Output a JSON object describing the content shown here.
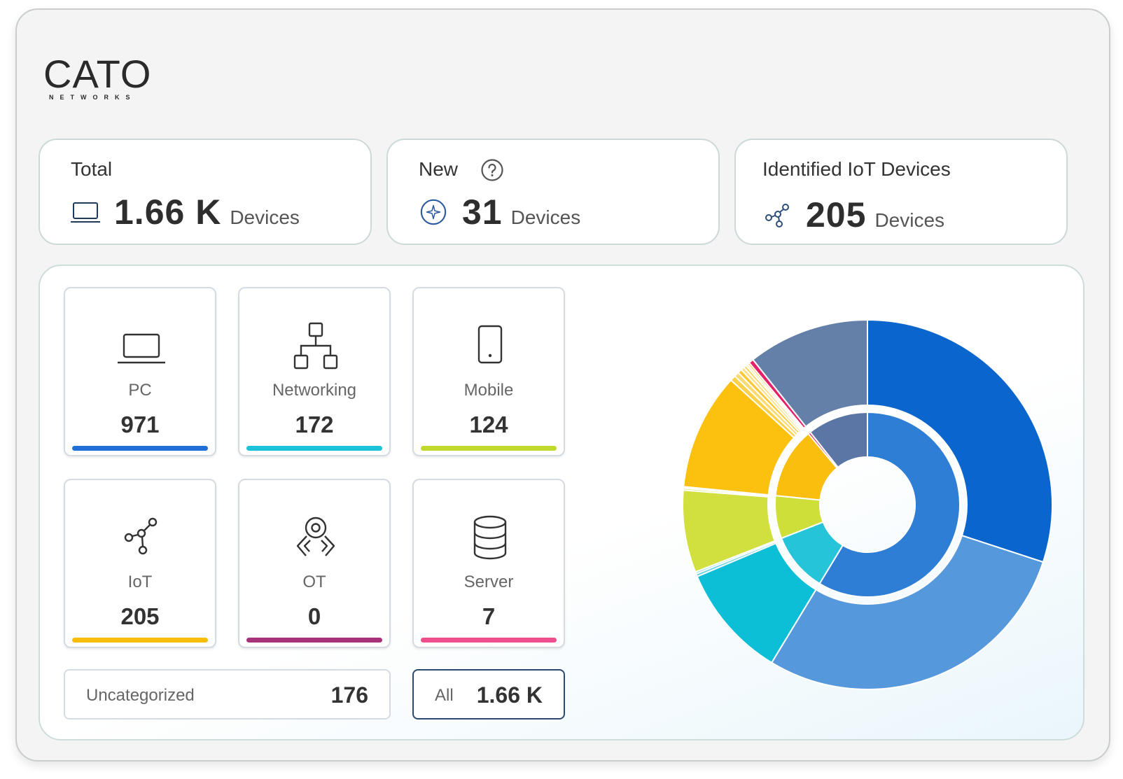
{
  "logo": {
    "main": "CATO",
    "sub": "NETWORKS"
  },
  "stats": {
    "total": {
      "title": "Total",
      "value": "1.66 K",
      "unit": "Devices",
      "icon": "laptop-icon"
    },
    "new": {
      "title": "New",
      "value": "31",
      "unit": "Devices",
      "icon": "sparkle-circle-icon",
      "help_icon": "question-circle-icon"
    },
    "iot": {
      "title": "Identified IoT Devices",
      "value": "205",
      "unit": "Devices",
      "icon": "nodes-icon"
    }
  },
  "categories": [
    {
      "label": "PC",
      "value": "971",
      "icon": "laptop-icon",
      "color": "#1f6fd6"
    },
    {
      "label": "Networking",
      "value": "172",
      "icon": "network-tree-icon",
      "color": "#1cc3d8"
    },
    {
      "label": "Mobile",
      "value": "124",
      "icon": "mobile-phone-icon",
      "color": "#c3d82d"
    },
    {
      "label": "IoT",
      "value": "205",
      "icon": "nodes-icon",
      "color": "#f8bc0b"
    },
    {
      "label": "OT",
      "value": "0",
      "icon": "robot-arm-icon",
      "color": "#a8327a"
    },
    {
      "label": "Server",
      "value": "7",
      "icon": "database-icon",
      "color": "#ee4f8c"
    }
  ],
  "uncategorized": {
    "label": "Uncategorized",
    "value": "176"
  },
  "all": {
    "label": "All",
    "value": "1.66 K",
    "border_color": "#2b4a6e"
  },
  "chart_data": {
    "type": "pie",
    "variant": "sunburst",
    "inner_ring": [
      {
        "category": "PC",
        "value": 971,
        "color": "#2f7ed6"
      },
      {
        "category": "Networking",
        "value": 172,
        "color": "#25c4d9"
      },
      {
        "category": "Mobile",
        "value": 124,
        "color": "#cedf3a"
      },
      {
        "category": "IoT",
        "value": 205,
        "color": "#f9be0e"
      },
      {
        "category": "Server",
        "value": 7,
        "color": "#e9326f"
      },
      {
        "category": "Uncategorized",
        "value": 176,
        "color": "#5b76a4"
      }
    ],
    "outer_ring": [
      {
        "category": "PC",
        "value": 497,
        "color": "#0a65cc"
      },
      {
        "category": "PC",
        "value": 474,
        "color": "#5598dc"
      },
      {
        "category": "Networking",
        "value": 165,
        "color": "#0dbfd6"
      },
      {
        "category": "Networking",
        "value": 4,
        "color": "#5fd3e3"
      },
      {
        "category": "Networking",
        "value": 3,
        "color": "#8ddfe9"
      },
      {
        "category": "Mobile",
        "value": 119,
        "color": "#d2e03f"
      },
      {
        "category": "Mobile",
        "value": 3,
        "color": "#e2eb85"
      },
      {
        "category": "Mobile",
        "value": 2,
        "color": "#ebf1ad"
      },
      {
        "category": "IoT",
        "value": 169,
        "color": "#fcc10f"
      },
      {
        "category": "IoT",
        "value": 8,
        "color": "#fbd04a"
      },
      {
        "category": "IoT",
        "value": 7,
        "color": "#fcdb72"
      },
      {
        "category": "IoT",
        "value": 6,
        "color": "#fbc935"
      },
      {
        "category": "IoT",
        "value": 5,
        "color": "#fde18a"
      },
      {
        "category": "IoT",
        "value": 4,
        "color": "#fbd45c"
      },
      {
        "category": "IoT",
        "value": 3,
        "color": "#fce7a3"
      },
      {
        "category": "IoT",
        "value": 3,
        "color": "#f8c62a"
      },
      {
        "category": "Server",
        "value": 7,
        "color": "#e7206a"
      },
      {
        "category": "Uncategorized",
        "value": 176,
        "color": "#6480a8"
      }
    ]
  }
}
